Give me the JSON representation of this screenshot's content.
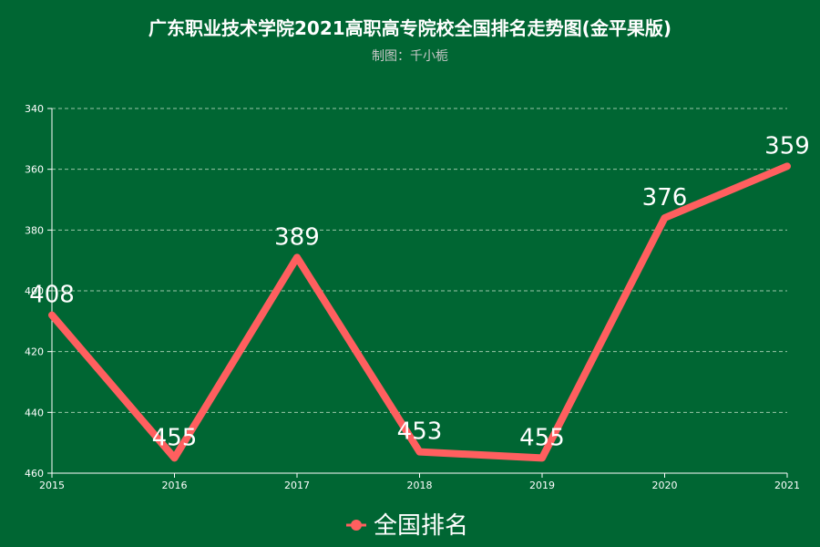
{
  "chart_data": {
    "type": "line",
    "title": "广东职业技术学院2021高职高专院校全国排名走势图(金平果版)",
    "subtitle": "制图：千小栀",
    "x": [
      "2015",
      "2016",
      "2017",
      "2018",
      "2019",
      "2020",
      "2021"
    ],
    "series": [
      {
        "name": "全国排名",
        "values": [
          408,
          455,
          389,
          453,
          455,
          376,
          359
        ]
      }
    ],
    "y_axis": {
      "inverted": true,
      "range": [
        340,
        460
      ],
      "ticks": [
        "340",
        "360",
        "380",
        "400",
        "420",
        "440",
        "460"
      ]
    },
    "grid": true,
    "legend_position": "bottom",
    "colors": {
      "background": "#006633",
      "line": "#ff5f5f",
      "grid": "#9ac7a8"
    }
  }
}
